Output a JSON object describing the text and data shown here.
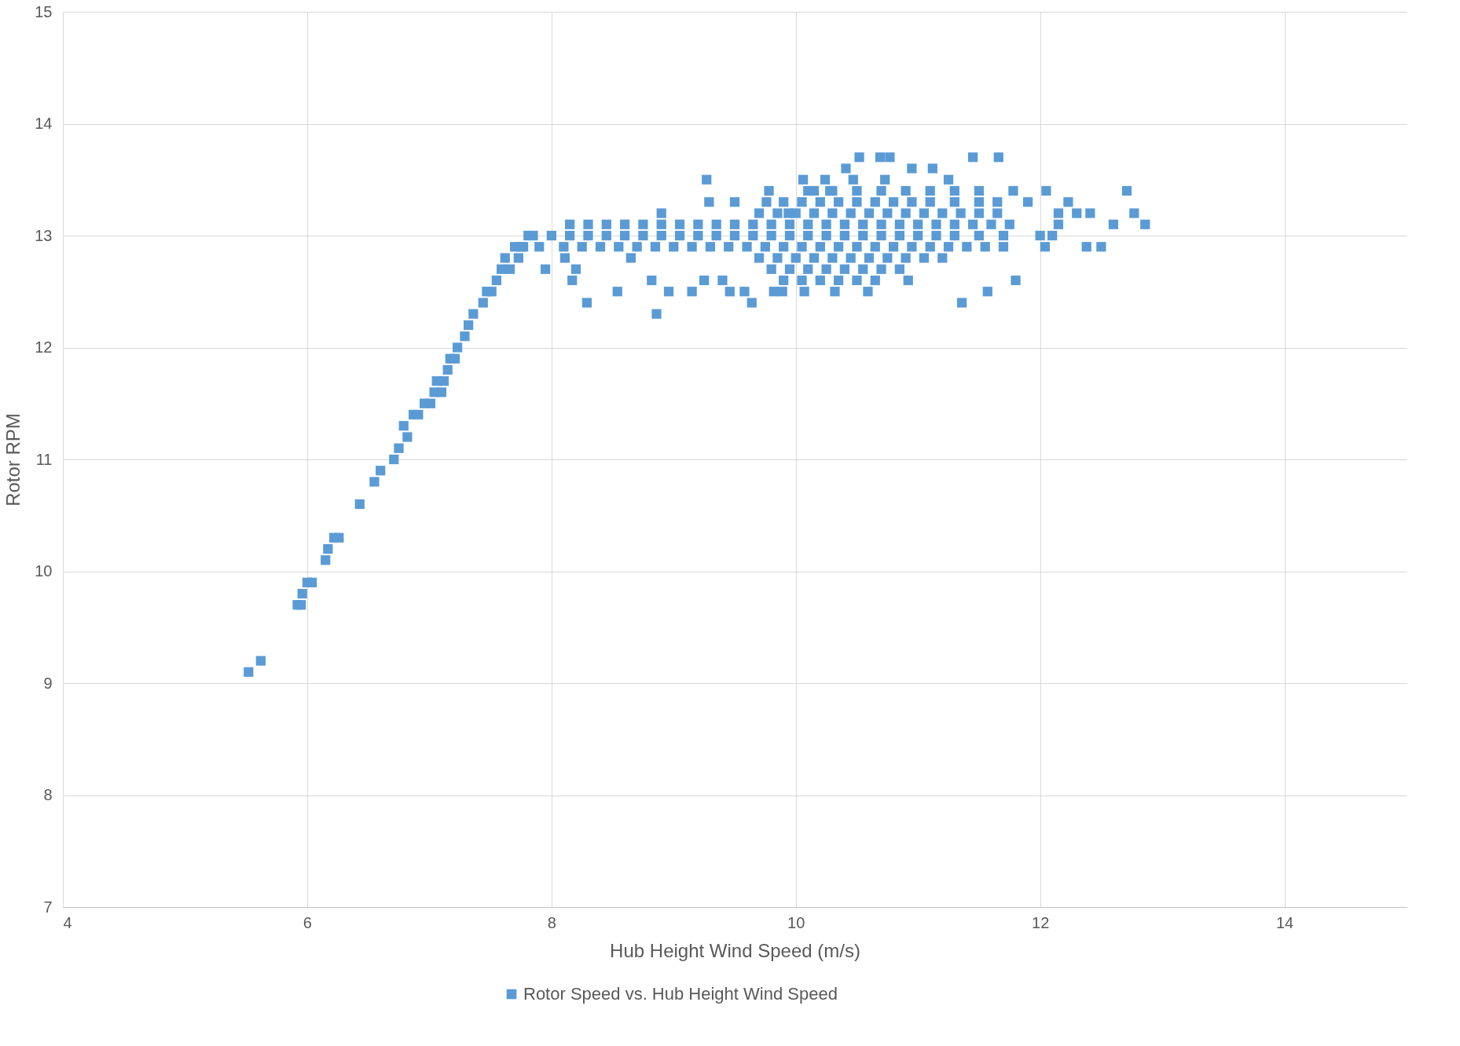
{
  "chart_data": {
    "type": "scatter",
    "xlabel": "Hub Height Wind Speed (m/s)",
    "ylabel": "Rotor RPM",
    "xlim": [
      4,
      15
    ],
    "xticks": [
      4,
      6,
      8,
      10,
      12,
      14
    ],
    "ylim": [
      7,
      15
    ],
    "yticks": [
      7,
      8,
      9,
      10,
      11,
      12,
      13,
      14,
      15
    ],
    "grid": true,
    "legend": "bottom",
    "marker": "square",
    "series": [
      {
        "name": "Rotor Speed vs. Hub Height Wind Speed",
        "color": "#5b9bd5",
        "x": [
          5.52,
          5.62,
          5.92,
          5.95,
          5.96,
          6.0,
          6.04,
          6.15,
          6.17,
          6.22,
          6.26,
          6.43,
          6.55,
          6.6,
          6.71,
          6.75,
          6.79,
          6.82,
          6.87,
          6.91,
          6.96,
          7.01,
          7.04,
          7.06,
          7.1,
          7.12,
          7.15,
          7.17,
          7.21,
          7.23,
          7.29,
          7.32,
          7.36,
          7.44,
          7.47,
          7.51,
          7.55,
          7.59,
          7.62,
          7.66,
          7.7,
          7.73,
          7.77,
          7.81,
          7.95,
          8.11,
          8.17,
          8.2,
          8.29,
          8.54,
          8.65,
          8.86,
          8.9,
          8.82,
          8.96,
          9.15,
          9.27,
          9.29,
          9.25,
          9.4,
          9.46,
          9.5,
          9.58,
          9.64,
          9.78,
          9.76,
          9.82,
          9.89,
          9.94,
          10.06,
          10.07,
          10.15,
          10.24,
          10.28,
          10.32,
          10.41,
          10.52,
          10.47,
          10.59,
          10.69,
          10.77,
          10.73,
          10.95,
          11.12,
          10.92,
          11.25,
          11.36,
          11.45,
          11.57,
          11.66,
          11.78,
          11.8,
          11.9,
          12.05,
          12.04,
          12.15,
          12.23,
          12.3,
          12.38,
          12.41,
          12.5,
          12.6,
          12.71,
          12.77,
          12.86,
          7.85,
          8.0,
          8.15,
          8.3,
          8.45,
          8.6,
          8.75,
          8.9,
          9.05,
          9.2,
          9.35,
          9.5,
          9.65,
          9.8,
          9.95,
          10.1,
          10.25,
          10.4,
          10.55,
          10.7,
          10.85,
          11.0,
          11.15,
          11.3,
          11.5,
          11.7,
          12.0,
          12.1,
          7.75,
          7.9,
          8.1,
          8.25,
          8.4,
          8.55,
          8.7,
          8.85,
          9.0,
          9.15,
          9.3,
          9.45,
          9.6,
          9.75,
          9.9,
          10.05,
          10.2,
          10.35,
          10.5,
          10.65,
          10.8,
          10.95,
          11.1,
          11.25,
          11.4,
          11.55,
          11.7,
          8.15,
          8.3,
          8.45,
          8.6,
          8.75,
          8.9,
          9.05,
          9.2,
          9.35,
          9.5,
          9.65,
          9.8,
          9.95,
          10.1,
          10.25,
          10.4,
          10.55,
          10.7,
          10.85,
          11.0,
          11.15,
          11.3,
          11.45,
          11.6,
          11.75,
          12.15,
          9.7,
          9.85,
          10.0,
          10.15,
          10.3,
          10.45,
          10.6,
          10.75,
          10.9,
          11.05,
          11.2,
          9.8,
          9.95,
          10.1,
          10.25,
          10.4,
          10.55,
          10.7,
          10.85,
          9.9,
          10.05,
          10.2,
          10.35,
          10.5,
          10.65,
          9.7,
          9.85,
          10.0,
          10.15,
          10.3,
          10.45,
          10.6,
          10.75,
          10.9,
          11.05,
          11.2,
          11.35,
          11.5,
          11.65,
          9.9,
          10.05,
          10.2,
          10.35,
          10.5,
          10.65,
          10.8,
          10.95,
          11.1,
          11.3,
          11.5,
          11.65,
          10.1,
          10.3,
          10.5,
          10.7,
          10.9,
          11.1,
          11.3,
          11.5
        ],
        "values": [
          9.1,
          9.2,
          9.7,
          9.7,
          9.8,
          9.9,
          9.9,
          10.1,
          10.2,
          10.3,
          10.3,
          10.6,
          10.8,
          10.9,
          11.0,
          11.1,
          11.3,
          11.2,
          11.4,
          11.4,
          11.5,
          11.5,
          11.6,
          11.7,
          11.6,
          11.7,
          11.8,
          11.9,
          11.9,
          12.0,
          12.1,
          12.2,
          12.3,
          12.4,
          12.5,
          12.5,
          12.6,
          12.7,
          12.8,
          12.7,
          12.9,
          12.8,
          12.9,
          13.0,
          12.7,
          12.8,
          12.6,
          12.7,
          12.4,
          12.5,
          12.8,
          12.3,
          13.2,
          12.6,
          12.5,
          12.5,
          13.5,
          13.3,
          12.6,
          12.6,
          12.5,
          13.3,
          12.5,
          12.4,
          13.4,
          13.3,
          12.5,
          12.5,
          13.2,
          13.5,
          12.5,
          13.4,
          13.5,
          13.4,
          12.5,
          13.6,
          13.7,
          13.5,
          12.5,
          13.7,
          13.7,
          13.5,
          13.6,
          13.6,
          12.6,
          13.5,
          12.4,
          13.7,
          12.5,
          13.7,
          13.4,
          12.6,
          13.3,
          13.4,
          12.9,
          13.2,
          13.3,
          13.2,
          12.9,
          13.2,
          12.9,
          13.1,
          13.4,
          13.2,
          13.1,
          13.0,
          13.0,
          13.0,
          13.0,
          13.0,
          13.0,
          13.0,
          13.0,
          13.0,
          13.0,
          13.0,
          13.0,
          13.0,
          13.0,
          13.0,
          13.0,
          13.0,
          13.0,
          13.0,
          13.0,
          13.0,
          13.0,
          13.0,
          13.0,
          13.0,
          13.0,
          13.0,
          13.0,
          12.9,
          12.9,
          12.9,
          12.9,
          12.9,
          12.9,
          12.9,
          12.9,
          12.9,
          12.9,
          12.9,
          12.9,
          12.9,
          12.9,
          12.9,
          12.9,
          12.9,
          12.9,
          12.9,
          12.9,
          12.9,
          12.9,
          12.9,
          12.9,
          12.9,
          12.9,
          12.9,
          13.1,
          13.1,
          13.1,
          13.1,
          13.1,
          13.1,
          13.1,
          13.1,
          13.1,
          13.1,
          13.1,
          13.1,
          13.1,
          13.1,
          13.1,
          13.1,
          13.1,
          13.1,
          13.1,
          13.1,
          13.1,
          13.1,
          13.1,
          13.1,
          13.1,
          13.1,
          12.8,
          12.8,
          12.8,
          12.8,
          12.8,
          12.8,
          12.8,
          12.8,
          12.8,
          12.8,
          12.8,
          12.7,
          12.7,
          12.7,
          12.7,
          12.7,
          12.7,
          12.7,
          12.7,
          12.6,
          12.6,
          12.6,
          12.6,
          12.6,
          12.6,
          13.2,
          13.2,
          13.2,
          13.2,
          13.2,
          13.2,
          13.2,
          13.2,
          13.2,
          13.2,
          13.2,
          13.2,
          13.2,
          13.2,
          13.3,
          13.3,
          13.3,
          13.3,
          13.3,
          13.3,
          13.3,
          13.3,
          13.3,
          13.3,
          13.3,
          13.3,
          13.4,
          13.4,
          13.4,
          13.4,
          13.4,
          13.4,
          13.4,
          13.4
        ]
      }
    ]
  }
}
